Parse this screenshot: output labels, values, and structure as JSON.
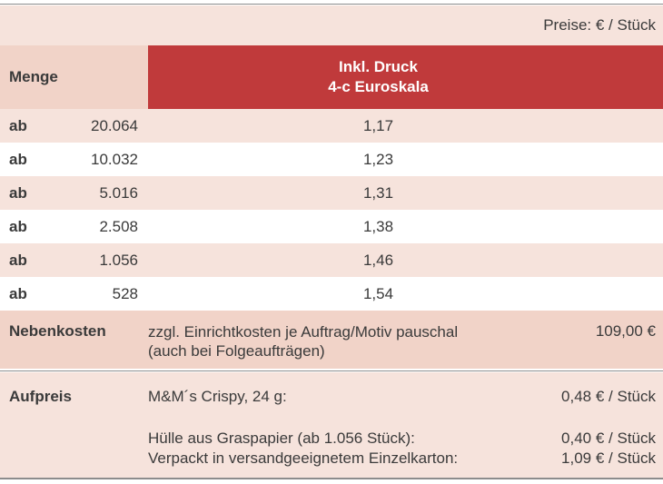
{
  "price_note": "Preise: € / Stück",
  "header": {
    "menge": "Menge",
    "druck_line1": "Inkl. Druck",
    "druck_line2": "4-c Euroskala"
  },
  "rows": [
    {
      "prefix": "ab",
      "qty": "20.064",
      "price": "1,17"
    },
    {
      "prefix": "ab",
      "qty": "10.032",
      "price": "1,23"
    },
    {
      "prefix": "ab",
      "qty": "5.016",
      "price": "1,31"
    },
    {
      "prefix": "ab",
      "qty": "2.508",
      "price": "1,38"
    },
    {
      "prefix": "ab",
      "qty": "1.056",
      "price": "1,46"
    },
    {
      "prefix": "ab",
      "qty": "528",
      "price": "1,54"
    }
  ],
  "nebenkosten": {
    "label": "Nebenkosten",
    "line1": "zzgl. Einrichtkosten je Auftrag/Motiv pauschal",
    "line2": "(auch bei Folgeaufträgen)",
    "amount": "109,00 €"
  },
  "aufpreis": {
    "label": "Aufpreis",
    "items": [
      {
        "text": "M&M´s Crispy, 24 g:",
        "value": "0,48 € / Stück"
      },
      {
        "text": "Hülle aus Graspapier (ab 1.056 Stück):",
        "value": "0,40 € / Stück"
      },
      {
        "text": "Verpackt in versandgeeignetem Einzelkarton:",
        "value": "1,09 € / Stück"
      }
    ]
  },
  "colors": {
    "header_red": "#c03a3b",
    "light_pink": "#f6e3dc",
    "mid_pink": "#f1d3c8"
  }
}
